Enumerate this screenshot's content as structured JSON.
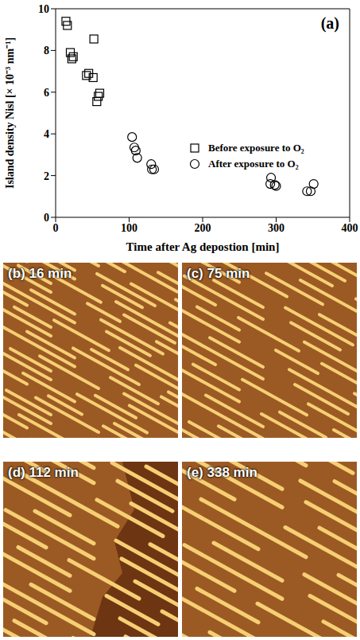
{
  "chart_data": {
    "type": "scatter",
    "title": "(a)",
    "x_label": "Time after Ag depostion [min]",
    "y_label": "Island density Nisl [× 10⁻³ nm⁻¹]",
    "xlim": [
      0,
      400
    ],
    "xticks": [
      0,
      100,
      200,
      300,
      400
    ],
    "ylim": [
      0,
      10
    ],
    "yticks": [
      0,
      2,
      4,
      6,
      8,
      10
    ],
    "grid": false,
    "legend": "upper right",
    "series": [
      {
        "name": "Before exposure to O₂",
        "color": "#000000",
        "marker": "square",
        "x": [
          14,
          16,
          20,
          22,
          24,
          42,
          45,
          52,
          51,
          56,
          58,
          60
        ],
        "values": [
          9.4,
          9.2,
          7.9,
          7.6,
          7.7,
          6.8,
          6.9,
          8.55,
          6.7,
          5.55,
          5.8,
          5.95
        ]
      },
      {
        "name": "After exposure to O₂",
        "color": "#000000",
        "marker": "circle",
        "x": [
          104,
          107,
          109,
          111,
          130,
          131,
          134,
          293,
          292,
          298,
          300,
          342,
          347,
          351
        ],
        "values": [
          3.85,
          3.35,
          3.2,
          2.85,
          2.55,
          2.3,
          2.3,
          1.9,
          1.6,
          1.55,
          1.5,
          1.25,
          1.25,
          1.6
        ]
      }
    ]
  },
  "images": [
    {
      "label": "(b) 16 min"
    },
    {
      "label": "(c) 75 min"
    },
    {
      "label": "(d) 112 min"
    },
    {
      "label": "(e) 338 min"
    }
  ]
}
